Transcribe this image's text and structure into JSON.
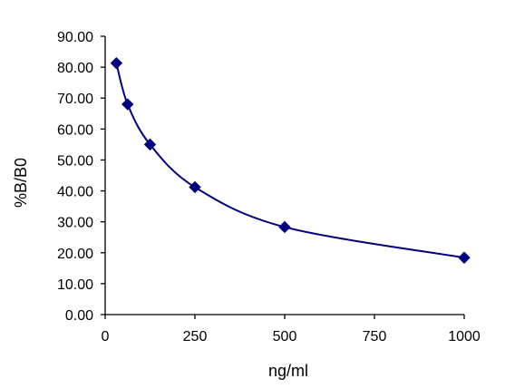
{
  "chart_data": {
    "type": "scatter",
    "title": "",
    "xlabel": "ng/ml",
    "ylabel": "%B/B0",
    "xlim": [
      0,
      1000
    ],
    "ylim": [
      0,
      90
    ],
    "x_ticks": [
      0,
      250,
      500,
      750,
      1000
    ],
    "x_tick_labels": [
      "0",
      "250",
      "500",
      "750",
      "1000"
    ],
    "y_ticks": [
      0,
      10,
      20,
      30,
      40,
      50,
      60,
      70,
      80,
      90
    ],
    "y_tick_labels": [
      "0.00",
      "10.00",
      "20.00",
      "30.00",
      "40.00",
      "50.00",
      "60.00",
      "70.00",
      "80.00",
      "90.00"
    ],
    "grid": false,
    "legend": "none",
    "marker": "diamond",
    "smoothed_line": true,
    "series": [
      {
        "x": [
          31.25,
          62.5,
          125,
          250,
          500,
          1000
        ],
        "y": [
          81.3,
          68.0,
          55.0,
          41.2,
          28.3,
          18.4
        ],
        "color": "#000080"
      }
    ]
  }
}
